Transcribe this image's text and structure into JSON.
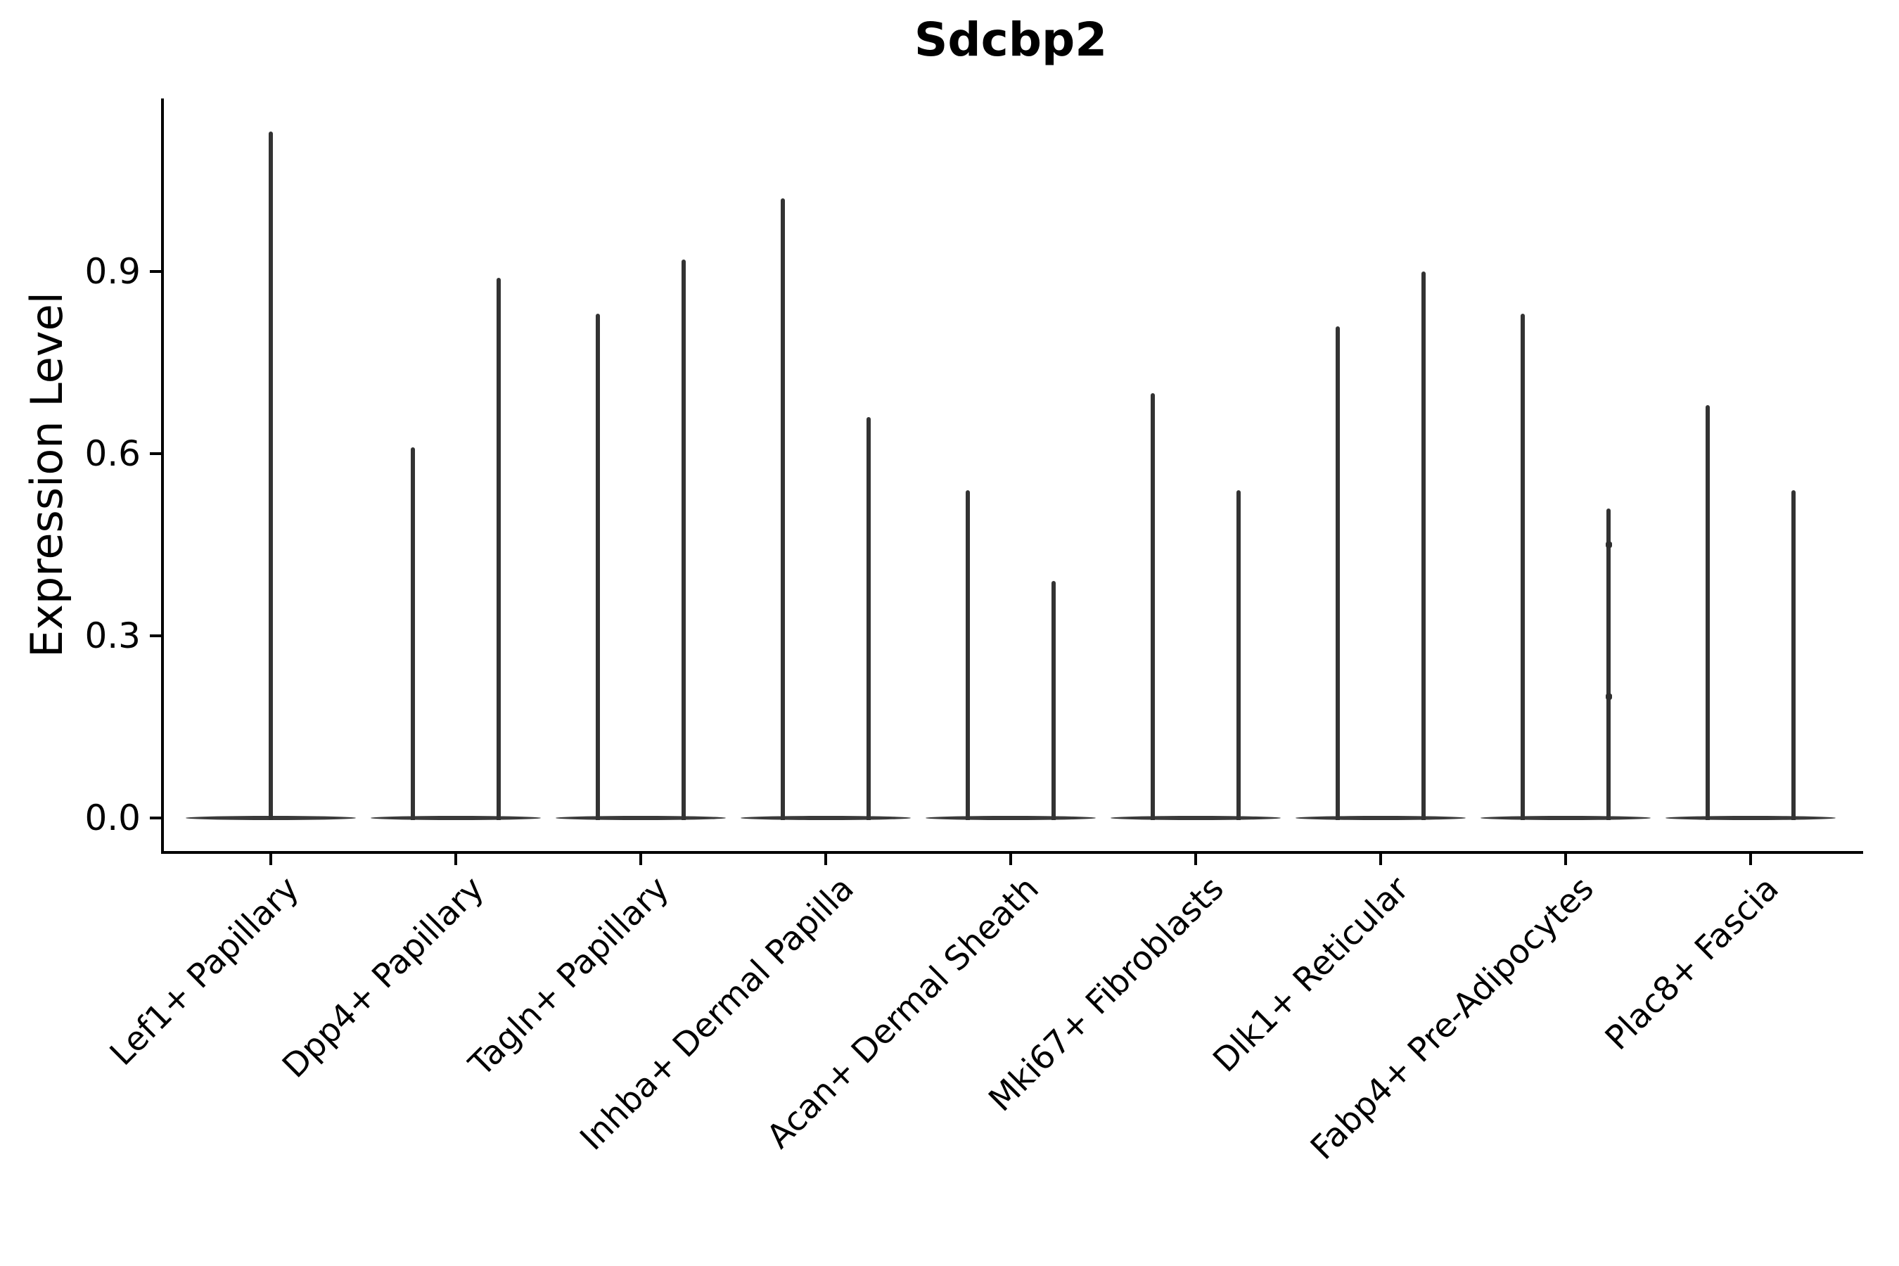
{
  "title": "Sdcbp2",
  "y_axis": {
    "label": "Expression Level",
    "tick_labels": [
      "0.0",
      "0.3",
      "0.6",
      "0.9"
    ]
  },
  "chart_data": {
    "type": "violin",
    "title": "Sdcbp2",
    "xlabel": "",
    "ylabel": "Expression Level",
    "ylim": [
      0.0,
      1.24
    ],
    "yticks": [
      0.0,
      0.3,
      0.6,
      0.9
    ],
    "grid": false,
    "legend": "none",
    "categories": [
      "Lef1+ Papillary",
      "Dpp4+ Papillary",
      "Tagln+ Papillary",
      "Inhba+ Dermal Papilla",
      "Acan+ Dermal Sheath",
      "Mki67+ Fibroblasts",
      "Dlk1+ Reticular",
      "Fabp4+ Pre-Adipocytes",
      "Plac8+ Fascia"
    ],
    "violins": [
      {
        "category": "Lef1+ Papillary",
        "maxima": [
          1.13
        ]
      },
      {
        "category": "Dpp4+ Papillary",
        "maxima": [
          0.61,
          0.89
        ]
      },
      {
        "category": "Tagln+ Papillary",
        "maxima": [
          0.83,
          0.92
        ]
      },
      {
        "category": "Inhba+ Dermal Papilla",
        "maxima": [
          1.02,
          0.66
        ]
      },
      {
        "category": "Acan+ Dermal Sheath",
        "maxima": [
          0.54,
          0.39
        ]
      },
      {
        "category": "Mki67+ Fibroblasts",
        "maxima": [
          0.7,
          0.54
        ]
      },
      {
        "category": "Dlk1+ Reticular",
        "maxima": [
          0.81,
          0.9
        ]
      },
      {
        "category": "Fabp4+ Pre-Adipocytes",
        "maxima": [
          0.83,
          0.51
        ]
      },
      {
        "category": "Plac8+ Fascia",
        "maxima": [
          0.68,
          0.54
        ]
      }
    ],
    "points": [
      {
        "category": "Fabp4+ Pre-Adipocytes",
        "violin": 2,
        "values": [
          0.45,
          0.2
        ]
      }
    ],
    "baseline_note": "All violins are collapsed at 0 (flat lens at y=0) with a single thin density spike rising to each maximum",
    "colors": {
      "violin_stroke": "#333333",
      "axis": "#000000",
      "text": "#000000",
      "background": "#ffffff"
    }
  }
}
